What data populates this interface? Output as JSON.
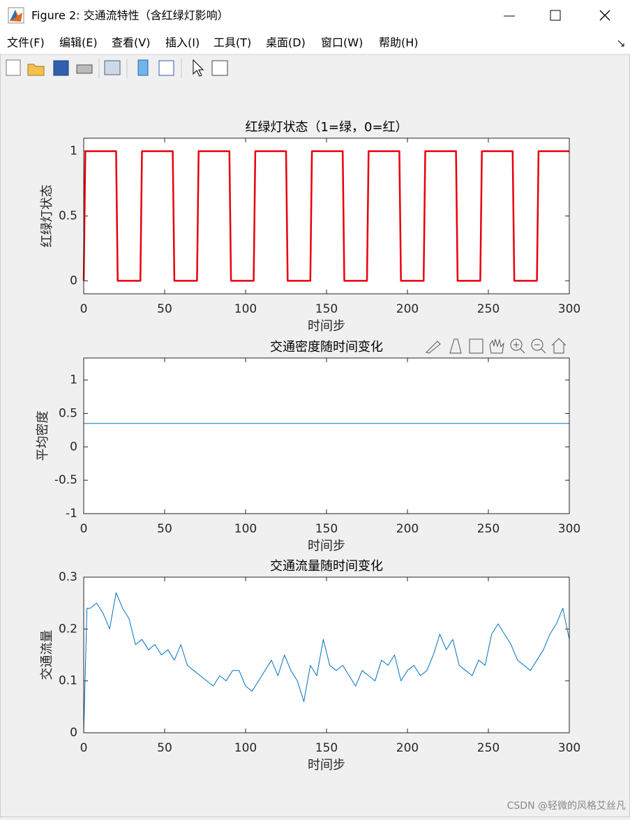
{
  "window": {
    "title": "Figure 2: 交通流特性（含红绿灯影响）"
  },
  "menu": [
    "文件(F)",
    "编辑(E)",
    "查看(V)",
    "插入(I)",
    "工具(T)",
    "桌面(D)",
    "窗口(W)",
    "帮助(H)"
  ],
  "chart_data": [
    {
      "type": "line",
      "title": "红绿灯状态（1=绿，0=红）",
      "x_label": "时间步",
      "y_label": "红绿灯状态",
      "color": "#e8000b",
      "x": [
        0,
        1,
        20,
        21,
        35,
        36,
        55,
        56,
        70,
        71,
        90,
        91,
        105,
        106,
        125,
        126,
        140,
        141,
        160,
        161,
        175,
        176,
        195,
        196,
        210,
        211,
        230,
        231,
        245,
        246,
        265,
        266,
        280,
        281,
        300
      ],
      "values": [
        0,
        1,
        1,
        0,
        0,
        1,
        1,
        0,
        0,
        1,
        1,
        0,
        0,
        1,
        1,
        0,
        0,
        1,
        1,
        0,
        0,
        1,
        1,
        0,
        0,
        1,
        1,
        0,
        0,
        1,
        1,
        0,
        0,
        1,
        1
      ],
      "xlim": [
        0,
        300
      ],
      "xticks": [
        0,
        50,
        100,
        150,
        200,
        250,
        300
      ],
      "ylim": [
        -0.1,
        1.1
      ],
      "yticks": [
        0,
        0.5,
        1
      ]
    },
    {
      "type": "line",
      "title": "交通密度随时间变化",
      "x_label": "时间步",
      "y_label": "平均密度",
      "color": "#0072bd",
      "x": [
        0,
        300
      ],
      "values": [
        0.35,
        0.35
      ],
      "xlim": [
        0,
        300
      ],
      "xticks": [
        0,
        50,
        100,
        150,
        200,
        250,
        300
      ],
      "ylim": [
        -1,
        1.33
      ],
      "yticks": [
        -1,
        -0.5,
        0,
        0.5,
        1
      ]
    },
    {
      "type": "line",
      "title": "交通流量随时间变化",
      "x_label": "时间步",
      "y_label": "交通流量",
      "color": "#0072bd",
      "x": [
        0,
        2,
        4,
        8,
        12,
        16,
        20,
        24,
        28,
        32,
        36,
        40,
        44,
        48,
        52,
        56,
        60,
        64,
        68,
        72,
        76,
        80,
        84,
        88,
        92,
        96,
        100,
        104,
        108,
        112,
        116,
        120,
        124,
        128,
        132,
        136,
        140,
        144,
        148,
        152,
        156,
        160,
        164,
        168,
        172,
        176,
        180,
        184,
        188,
        192,
        196,
        200,
        204,
        208,
        212,
        216,
        220,
        224,
        228,
        232,
        236,
        240,
        244,
        248,
        252,
        256,
        260,
        264,
        268,
        272,
        276,
        280,
        284,
        288,
        292,
        296,
        300
      ],
      "values": [
        0,
        0.24,
        0.24,
        0.25,
        0.23,
        0.2,
        0.27,
        0.24,
        0.22,
        0.17,
        0.18,
        0.16,
        0.17,
        0.15,
        0.16,
        0.14,
        0.17,
        0.13,
        0.12,
        0.11,
        0.1,
        0.09,
        0.11,
        0.1,
        0.12,
        0.12,
        0.09,
        0.08,
        0.1,
        0.12,
        0.14,
        0.11,
        0.15,
        0.12,
        0.1,
        0.06,
        0.13,
        0.11,
        0.18,
        0.13,
        0.12,
        0.13,
        0.11,
        0.09,
        0.12,
        0.11,
        0.1,
        0.14,
        0.13,
        0.15,
        0.1,
        0.12,
        0.13,
        0.11,
        0.12,
        0.15,
        0.19,
        0.16,
        0.18,
        0.13,
        0.12,
        0.11,
        0.14,
        0.13,
        0.19,
        0.21,
        0.19,
        0.17,
        0.14,
        0.13,
        0.12,
        0.14,
        0.16,
        0.19,
        0.21,
        0.24,
        0.18
      ],
      "xlim": [
        0,
        300
      ],
      "xticks": [
        0,
        50,
        100,
        150,
        200,
        250,
        300
      ],
      "ylim": [
        0,
        0.3
      ],
      "yticks": [
        0,
        0.1,
        0.2,
        0.3
      ]
    }
  ],
  "watermark": "CSDN @轻微的风格艾丝凡"
}
